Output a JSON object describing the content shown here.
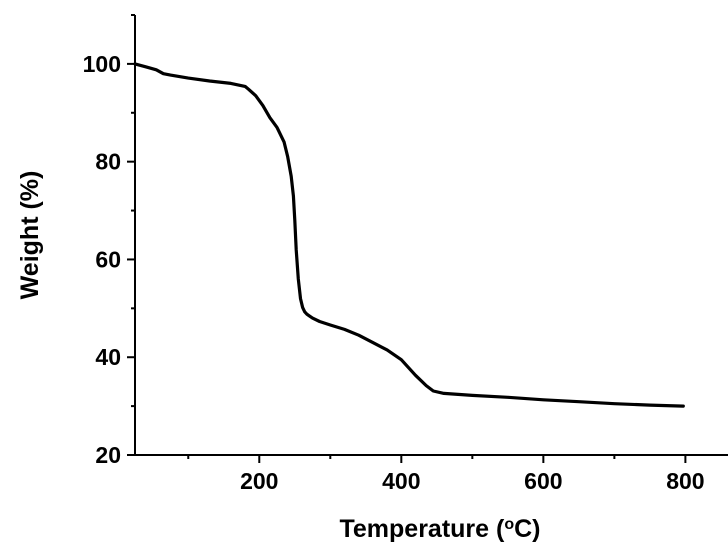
{
  "chart_data": {
    "type": "line",
    "xlabel": "Temperature (",
    "xlabel_sup": "o",
    "xlabel_unit": "C)",
    "ylabel": "Weight (%)",
    "xlim": [
      25,
      860
    ],
    "ylim": [
      20,
      110
    ],
    "x_ticks": [
      200,
      400,
      600,
      800
    ],
    "y_ticks": [
      20,
      40,
      60,
      80,
      100
    ],
    "x_minor_ticks": [
      100,
      300,
      500,
      700
    ],
    "y_minor_ticks": [
      30,
      50,
      70,
      90
    ],
    "grid": false,
    "series": [
      {
        "x": [
          25,
          40,
          55,
          65,
          75,
          100,
          130,
          160,
          180,
          185,
          195,
          205,
          215,
          225,
          235,
          240,
          245,
          248,
          250,
          252,
          255,
          258,
          261,
          264,
          267,
          270,
          275,
          285,
          300,
          320,
          340,
          360,
          380,
          400,
          420,
          435,
          445,
          460,
          500,
          550,
          600,
          650,
          700,
          750,
          797
        ],
        "y": [
          100,
          99.4,
          98.8,
          98,
          97.7,
          97.1,
          96.5,
          96,
          95.4,
          94.8,
          93.5,
          91.5,
          89,
          87,
          84,
          81,
          77,
          73,
          68,
          62,
          56,
          52,
          50.2,
          49.3,
          48.8,
          48.5,
          48,
          47.3,
          46.6,
          45.7,
          44.5,
          43,
          41.5,
          39.5,
          36.3,
          34.2,
          33.1,
          32.6,
          32.2,
          31.8,
          31.3,
          30.9,
          30.5,
          30.2,
          30
        ]
      }
    ]
  }
}
